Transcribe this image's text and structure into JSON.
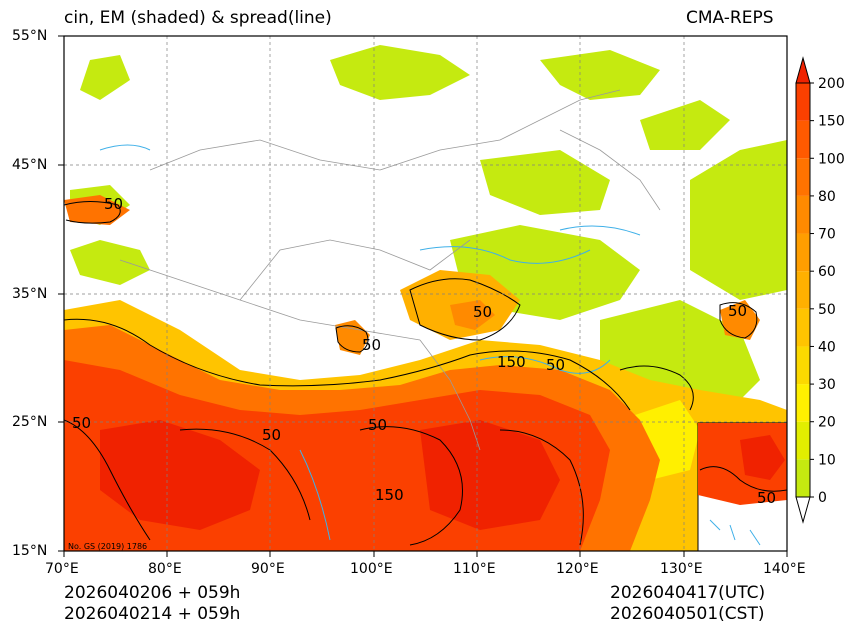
{
  "title_left": "cin, EM (shaded) & spread(line)",
  "title_right": "CMA-REPS",
  "lat_labels": [
    "55°N",
    "45°N",
    "35°N",
    "25°N",
    "15°N"
  ],
  "lon_labels": [
    "70°E",
    "80°E",
    "90°E",
    "100°E",
    "110°E",
    "120°E",
    "130°E",
    "140°E"
  ],
  "colorbar": {
    "labels": [
      "0",
      "10",
      "20",
      "30",
      "40",
      "50",
      "60",
      "70",
      "80",
      "100",
      "150",
      "200"
    ],
    "colors": [
      "#c5ea10",
      "#e2ee00",
      "#fff000",
      "#fcd900",
      "#ffc400",
      "#ffb000",
      "#ff9e00",
      "#ff8a00",
      "#ff7300",
      "#ff5a00",
      "#fb4000",
      "#f02200"
    ]
  },
  "contour_labels": [
    "50",
    "50",
    "50",
    "50",
    "150",
    "50",
    "50",
    "50",
    "50",
    "150",
    "50"
  ],
  "watermark": "No. GS (2019) 1786",
  "footer": {
    "init_utc": "2026040206  +  059h",
    "init_cst": "2026040214  +  059h",
    "valid_utc": "2026040417(UTC)",
    "valid_cst": "2026040501(CST)"
  }
}
